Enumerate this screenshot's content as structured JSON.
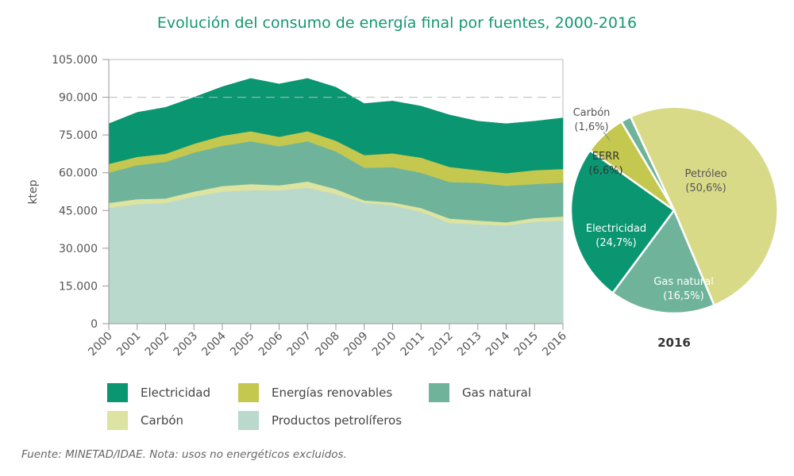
{
  "title": "Evolución del consumo de energía final por fuentes, 2000-2016",
  "source_note": "Fuente: MINETAD/IDAE. Nota: usos no energéticos excluidos.",
  "chart_data": [
    {
      "type": "area",
      "stacked": true,
      "ylabel": "ktep",
      "ylim": [
        0,
        105000
      ],
      "yticks": [
        "0",
        "15.000",
        "30.000",
        "45.000",
        "60.000",
        "75.000",
        "90.000",
        "105.000"
      ],
      "ytick_values": [
        0,
        15000,
        30000,
        45000,
        60000,
        75000,
        90000,
        105000
      ],
      "dashed_gridlines": [
        90000,
        105000
      ],
      "categories": [
        "2000",
        "2001",
        "2002",
        "2003",
        "2004",
        "2005",
        "2006",
        "2007",
        "2008",
        "2009",
        "2010",
        "2011",
        "2012",
        "2013",
        "2014",
        "2015",
        "2016"
      ],
      "series": [
        {
          "name": "Productos petrolíferos",
          "color": "#b9d9cc",
          "values": [
            46000,
            47500,
            48000,
            50500,
            52500,
            53000,
            53000,
            54000,
            51500,
            48000,
            47000,
            44500,
            40000,
            39500,
            39000,
            40500,
            41000
          ]
        },
        {
          "name": "Carbón",
          "color": "#dde3a0",
          "values": [
            2000,
            2000,
            1800,
            2000,
            2200,
            2500,
            2000,
            2500,
            2000,
            1000,
            1200,
            1500,
            1800,
            1500,
            1300,
            1500,
            1600
          ]
        },
        {
          "name": "Gas natural",
          "color": "#6fb49a",
          "values": [
            12000,
            13500,
            14500,
            15500,
            16000,
            17000,
            15500,
            16000,
            15000,
            13000,
            14000,
            14000,
            14500,
            15000,
            14500,
            13500,
            13500
          ]
        },
        {
          "name": "Energías renovables",
          "color": "#c4c84e",
          "values": [
            3500,
            3300,
            3200,
            3500,
            4000,
            4000,
            3800,
            4000,
            4200,
            5000,
            5500,
            6000,
            6000,
            5000,
            5000,
            5500,
            5400
          ]
        },
        {
          "name": "Electricidad",
          "color": "#0b9672",
          "values": [
            16000,
            17700,
            18500,
            18500,
            19500,
            21000,
            21000,
            21000,
            21300,
            20500,
            20800,
            20500,
            20700,
            19500,
            19700,
            19500,
            20300
          ]
        }
      ],
      "legend_order": [
        "Electricidad",
        "Energías renovables",
        "Gas natural",
        "Carbón",
        "Productos petrolíferos"
      ],
      "legend_position": "bottom"
    },
    {
      "type": "pie",
      "title": "2016",
      "slices": [
        {
          "label": "Petróleo",
          "value_label": "(50,6%)",
          "value": 50.6,
          "color": "#d9da88"
        },
        {
          "label": "Gas natural",
          "value_label": "(16,5%)",
          "value": 16.5,
          "color": "#6fb49a"
        },
        {
          "label": "Electricidad",
          "value_label": "(24,7%)",
          "value": 24.7,
          "color": "#0b9672"
        },
        {
          "label": "EERR",
          "value_label": "(6,6%)",
          "value": 6.6,
          "color": "#c4c84e"
        },
        {
          "label": "Carbón",
          "value_label": "(1,6%)",
          "value": 1.6,
          "color": "#6fb49a"
        }
      ]
    }
  ]
}
